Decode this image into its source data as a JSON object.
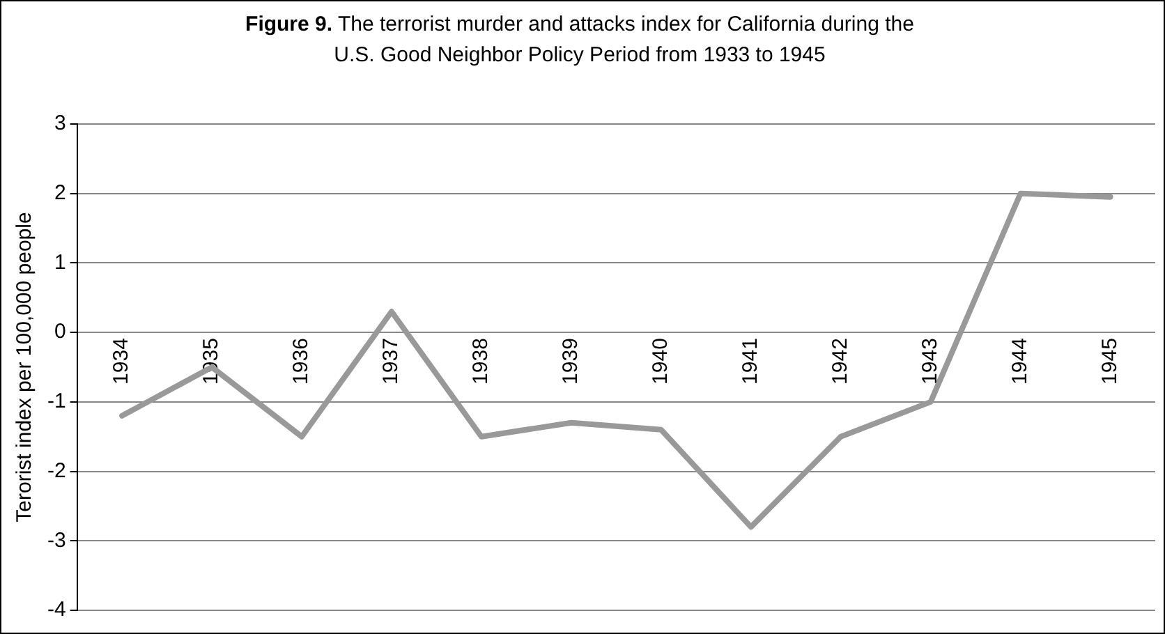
{
  "chart_data": {
    "type": "line",
    "title": "Figure 9. The terrorist murder and attacks index for California during the U.S. Good Neighbor Policy Period from 1933 to 1945",
    "ylabel": "Terorist index per 100,000 people",
    "categories": [
      "1934",
      "1935",
      "1936",
      "1937",
      "1938",
      "1939",
      "1940",
      "1941",
      "1942",
      "1943",
      "1944",
      "1945"
    ],
    "series": [
      {
        "color": "#999999",
        "values": [
          -1.2,
          -0.5,
          -1.5,
          0.3,
          -1.5,
          -1.3,
          -1.4,
          -2.8,
          -1.5,
          -1.0,
          2.0,
          1.95
        ]
      }
    ],
    "ylim": [
      -4,
      3
    ],
    "yticks": [
      -4,
      -3,
      -2,
      -1,
      0,
      1,
      2,
      3
    ],
    "grid": "y",
    "legend": false,
    "marker": "none",
    "line_style": "solid"
  }
}
